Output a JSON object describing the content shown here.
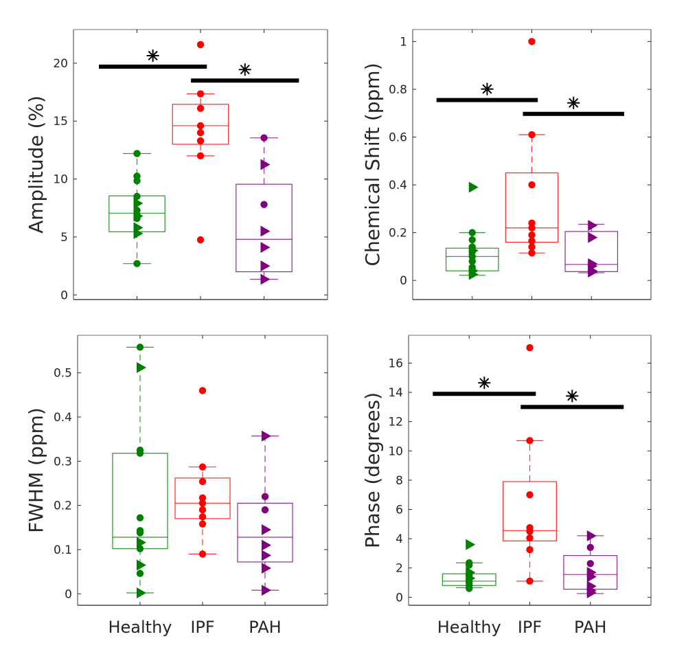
{
  "chart_data": [
    {
      "type": "box",
      "ylabel": "Amplitude (%)",
      "xlabel": "",
      "categories": [
        "Healthy",
        "IPF",
        "PAH"
      ],
      "show_xticklabels": false,
      "ylim": [
        -0.4,
        22.9
      ],
      "yticks": [
        0,
        5,
        10,
        15,
        20
      ],
      "ytick_labels": [
        "0",
        "5",
        "10",
        "15",
        "20"
      ],
      "grid": false,
      "groups": [
        {
          "name": "Healthy",
          "color": "#008000",
          "box": {
            "q1": 5.45,
            "median": 7.05,
            "q3": 8.55,
            "whisker_low": 2.7,
            "whisker_high": 12.2
          },
          "circles": [
            12.2,
            10.25,
            9.85,
            8.5,
            7.3,
            6.9,
            6.6,
            2.7
          ],
          "triangles": [
            7.9,
            6.8,
            5.8,
            5.3
          ]
        },
        {
          "name": "IPF",
          "color": "#FF0000",
          "box": {
            "q1": 13.0,
            "median": 14.6,
            "q3": 16.45,
            "whisker_low": 12.0,
            "whisker_high": 17.35
          },
          "circles": [
            21.6,
            17.35,
            16.1,
            14.6,
            14.0,
            13.3,
            12.0,
            4.75
          ],
          "triangles": []
        },
        {
          "name": "PAH",
          "color": "#800080",
          "box": {
            "q1": 2.0,
            "median": 4.8,
            "q3": 9.55,
            "whisker_low": 1.35,
            "whisker_high": 13.55
          },
          "circles": [
            13.55,
            7.8
          ],
          "triangles": [
            11.25,
            5.5,
            4.1,
            2.5,
            1.35
          ]
        }
      ],
      "significance": [
        {
          "from": "Healthy",
          "to": "IPF",
          "y": 19.7,
          "label": "*"
        },
        {
          "from": "IPF",
          "to": "PAH",
          "y": 18.5,
          "label": "*"
        }
      ]
    },
    {
      "type": "box",
      "ylabel": "Chemical Shift (ppm)",
      "xlabel": "",
      "categories": [
        "Healthy",
        "IPF",
        "PAH"
      ],
      "show_xticklabels": false,
      "ylim": [
        -0.08,
        1.05
      ],
      "yticks": [
        0,
        0.2,
        0.4,
        0.6,
        0.8,
        1
      ],
      "ytick_labels": [
        "0",
        "0.2",
        "0.4",
        "0.6",
        "0.8",
        "1"
      ],
      "grid": false,
      "groups": [
        {
          "name": "Healthy",
          "color": "#008000",
          "box": {
            "q1": 0.04,
            "median": 0.1,
            "q3": 0.135,
            "whisker_low": 0.022,
            "whisker_high": 0.2
          },
          "circles": [
            0.2,
            0.17,
            0.14,
            0.12,
            0.1,
            0.08,
            0.055,
            0.045
          ],
          "triangles": [
            0.39,
            0.125,
            0.04,
            0.025
          ]
        },
        {
          "name": "IPF",
          "color": "#FF0000",
          "box": {
            "q1": 0.16,
            "median": 0.22,
            "q3": 0.45,
            "whisker_low": 0.115,
            "whisker_high": 0.61
          },
          "circles": [
            1.0,
            0.61,
            0.4,
            0.24,
            0.22,
            0.19,
            0.165,
            0.14,
            0.115
          ],
          "triangles": []
        },
        {
          "name": "PAH",
          "color": "#800080",
          "box": {
            "q1": 0.037,
            "median": 0.067,
            "q3": 0.205,
            "whisker_low": 0.032,
            "whisker_high": 0.235
          },
          "circles": [],
          "triangles": [
            0.23,
            0.18,
            0.07,
            0.06,
            0.04,
            0.035
          ]
        }
      ],
      "significance": [
        {
          "from": "Healthy",
          "to": "IPF",
          "y": 0.755,
          "label": "*"
        },
        {
          "from": "IPF",
          "to": "PAH",
          "y": 0.697,
          "label": "*"
        }
      ]
    },
    {
      "type": "box",
      "ylabel": "FWHM (ppm)",
      "xlabel": "",
      "categories": [
        "Healthy",
        "IPF",
        "PAH"
      ],
      "show_xticklabels": true,
      "ylim": [
        -0.026,
        0.585
      ],
      "yticks": [
        0,
        0.1,
        0.2,
        0.3,
        0.4,
        0.5
      ],
      "ytick_labels": [
        "0",
        "0.1",
        "0.2",
        "0.3",
        "0.4",
        "0.5"
      ],
      "grid": false,
      "groups": [
        {
          "name": "Healthy",
          "color": "#008000",
          "box": {
            "q1": 0.102,
            "median": 0.128,
            "q3": 0.318,
            "whisker_low": 0.002,
            "whisker_high": 0.558
          },
          "circles": [
            0.558,
            0.325,
            0.318,
            0.172,
            0.143,
            0.138,
            0.102,
            0.046
          ],
          "triangles": [
            0.512,
            0.116,
            0.065,
            0.002
          ]
        },
        {
          "name": "IPF",
          "color": "#FF0000",
          "box": {
            "q1": 0.17,
            "median": 0.205,
            "q3": 0.262,
            "whisker_low": 0.09,
            "whisker_high": 0.287
          },
          "circles": [
            0.46,
            0.287,
            0.254,
            0.217,
            0.205,
            0.19,
            0.174,
            0.158,
            0.09
          ],
          "triangles": []
        },
        {
          "name": "PAH",
          "color": "#800080",
          "box": {
            "q1": 0.072,
            "median": 0.128,
            "q3": 0.205,
            "whisker_low": 0.008,
            "whisker_high": 0.357
          },
          "circles": [
            0.22,
            0.19
          ],
          "triangles": [
            0.357,
            0.145,
            0.11,
            0.087,
            0.058,
            0.008
          ]
        }
      ],
      "significance": []
    },
    {
      "type": "box",
      "ylabel": "Phase (degrees)",
      "xlabel": "",
      "categories": [
        "Healthy",
        "IPF",
        "PAH"
      ],
      "show_xticklabels": true,
      "ylim": [
        -0.55,
        17.9
      ],
      "yticks": [
        0,
        2,
        4,
        6,
        8,
        10,
        12,
        14,
        16
      ],
      "ytick_labels": [
        "0",
        "2",
        "4",
        "6",
        "8",
        "10",
        "12",
        "14",
        "16"
      ],
      "grid": false,
      "groups": [
        {
          "name": "Healthy",
          "color": "#008000",
          "box": {
            "q1": 0.8,
            "median": 1.1,
            "q3": 1.6,
            "whisker_low": 0.65,
            "whisker_high": 2.35
          },
          "circles": [
            2.35,
            2.2,
            1.5,
            1.2,
            1.0,
            0.8,
            0.6
          ],
          "triangles": [
            3.6,
            1.7,
            1.3
          ]
        },
        {
          "name": "IPF",
          "color": "#FF0000",
          "box": {
            "q1": 3.85,
            "median": 4.55,
            "q3": 7.9,
            "whisker_low": 1.1,
            "whisker_high": 10.7
          },
          "circles": [
            17.05,
            10.7,
            7.0,
            4.75,
            4.5,
            4.05,
            3.25,
            1.1
          ],
          "triangles": []
        },
        {
          "name": "PAH",
          "color": "#800080",
          "box": {
            "q1": 0.55,
            "median": 1.55,
            "q3": 2.85,
            "whisker_low": 0.25,
            "whisker_high": 4.2
          },
          "circles": [
            3.4,
            2.3
          ],
          "triangles": [
            4.2,
            1.7,
            1.4,
            0.75,
            0.45,
            0.3
          ]
        }
      ],
      "significance": [
        {
          "from": "Healthy",
          "to": "IPF",
          "y": 13.9,
          "label": "*"
        },
        {
          "from": "IPF",
          "to": "PAH",
          "y": 13.0,
          "label": "*"
        }
      ]
    }
  ]
}
